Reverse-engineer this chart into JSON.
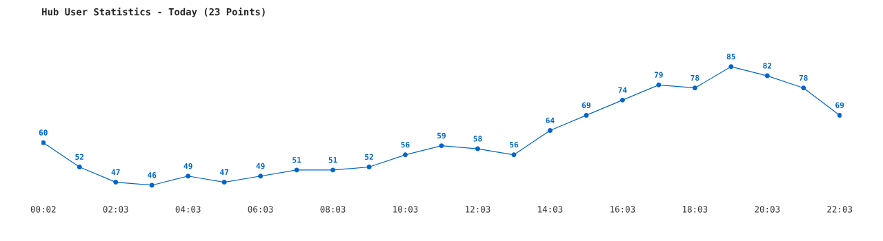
{
  "chart_data": {
    "type": "line",
    "title": "Hub User Statistics - Today (23 Points)",
    "categories": [
      "00:02",
      null,
      "02:03",
      null,
      "04:03",
      null,
      "06:03",
      null,
      "08:03",
      null,
      "10:03",
      null,
      "12:03",
      null,
      "14:03",
      null,
      "16:03",
      null,
      "18:03",
      null,
      "20:03",
      null,
      "22:03"
    ],
    "series": [
      {
        "color": "#0066cc",
        "values": [
          60,
          52,
          47,
          46,
          49,
          47,
          49,
          51,
          51,
          52,
          56,
          59,
          58,
          56,
          64,
          69,
          74,
          79,
          78,
          85,
          82,
          78,
          69
        ]
      }
    ],
    "data_labels": true,
    "marker": "circle",
    "line_style": "solid",
    "grid": false,
    "legend": false
  }
}
